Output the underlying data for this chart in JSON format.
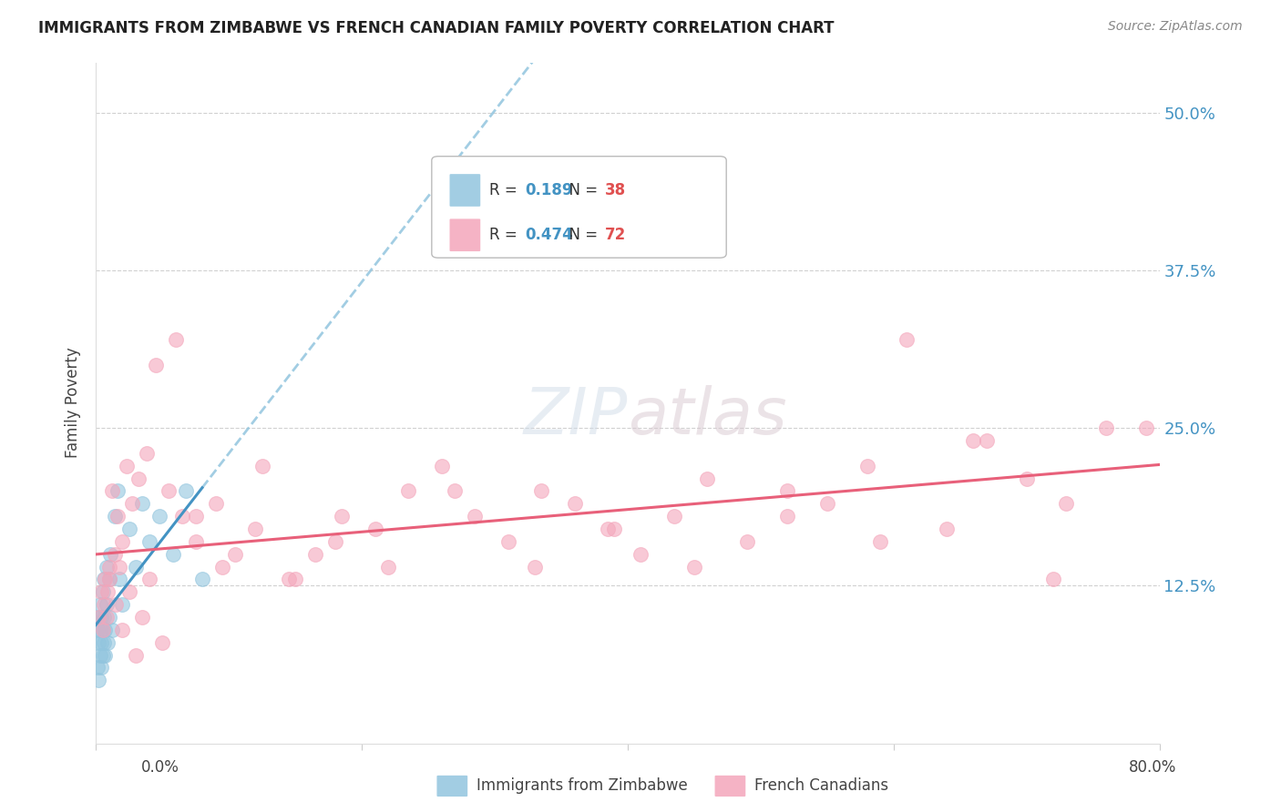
{
  "title": "IMMIGRANTS FROM ZIMBABWE VS FRENCH CANADIAN FAMILY POVERTY CORRELATION CHART",
  "source": "Source: ZipAtlas.com",
  "ylabel": "Family Poverty",
  "legend_label1": "Immigrants from Zimbabwe",
  "legend_label2": "French Canadians",
  "legend_r1_val": "0.189",
  "legend_n1_val": "38",
  "legend_r2_val": "0.474",
  "legend_n2_val": "72",
  "ytick_labels": [
    "12.5%",
    "25.0%",
    "37.5%",
    "50.0%"
  ],
  "ytick_values": [
    0.125,
    0.25,
    0.375,
    0.5
  ],
  "color_blue": "#92c5de",
  "color_pink": "#f4a6bb",
  "color_blue_line": "#4393c3",
  "color_pink_line": "#e8607a",
  "color_blue_dashed": "#92c5de",
  "background_color": "#ffffff",
  "xmin": 0.0,
  "xmax": 0.8,
  "ymin": 0.0,
  "ymax": 0.54,
  "zimbabwe_x": [
    0.001,
    0.001,
    0.002,
    0.002,
    0.002,
    0.003,
    0.003,
    0.003,
    0.004,
    0.004,
    0.004,
    0.005,
    0.005,
    0.005,
    0.006,
    0.006,
    0.006,
    0.007,
    0.007,
    0.008,
    0.008,
    0.009,
    0.01,
    0.01,
    0.011,
    0.012,
    0.014,
    0.016,
    0.018,
    0.02,
    0.025,
    0.03,
    0.035,
    0.04,
    0.048,
    0.058,
    0.068,
    0.08
  ],
  "zimbabwe_y": [
    0.06,
    0.09,
    0.05,
    0.08,
    0.1,
    0.07,
    0.09,
    0.11,
    0.06,
    0.08,
    0.1,
    0.07,
    0.09,
    0.12,
    0.08,
    0.1,
    0.13,
    0.07,
    0.09,
    0.11,
    0.14,
    0.08,
    0.1,
    0.13,
    0.15,
    0.09,
    0.18,
    0.2,
    0.13,
    0.11,
    0.17,
    0.14,
    0.19,
    0.16,
    0.18,
    0.15,
    0.2,
    0.13
  ],
  "french_x": [
    0.002,
    0.004,
    0.005,
    0.006,
    0.007,
    0.008,
    0.009,
    0.01,
    0.012,
    0.014,
    0.016,
    0.018,
    0.02,
    0.023,
    0.027,
    0.032,
    0.038,
    0.045,
    0.055,
    0.065,
    0.075,
    0.09,
    0.105,
    0.125,
    0.145,
    0.165,
    0.185,
    0.21,
    0.235,
    0.26,
    0.285,
    0.31,
    0.335,
    0.36,
    0.385,
    0.41,
    0.435,
    0.46,
    0.49,
    0.52,
    0.55,
    0.58,
    0.61,
    0.64,
    0.67,
    0.7,
    0.73,
    0.76,
    0.79,
    0.01,
    0.015,
    0.02,
    0.025,
    0.03,
    0.035,
    0.04,
    0.05,
    0.06,
    0.075,
    0.095,
    0.12,
    0.15,
    0.18,
    0.22,
    0.27,
    0.33,
    0.39,
    0.45,
    0.52,
    0.59,
    0.66,
    0.72
  ],
  "french_y": [
    0.1,
    0.12,
    0.09,
    0.11,
    0.13,
    0.1,
    0.12,
    0.14,
    0.2,
    0.15,
    0.18,
    0.14,
    0.16,
    0.22,
    0.19,
    0.21,
    0.23,
    0.3,
    0.2,
    0.18,
    0.16,
    0.19,
    0.15,
    0.22,
    0.13,
    0.15,
    0.18,
    0.17,
    0.2,
    0.22,
    0.18,
    0.16,
    0.2,
    0.19,
    0.17,
    0.15,
    0.18,
    0.21,
    0.16,
    0.2,
    0.19,
    0.22,
    0.32,
    0.17,
    0.24,
    0.21,
    0.19,
    0.25,
    0.25,
    0.13,
    0.11,
    0.09,
    0.12,
    0.07,
    0.1,
    0.13,
    0.08,
    0.32,
    0.18,
    0.14,
    0.17,
    0.13,
    0.16,
    0.14,
    0.2,
    0.14,
    0.17,
    0.14,
    0.18,
    0.16,
    0.24,
    0.13
  ]
}
